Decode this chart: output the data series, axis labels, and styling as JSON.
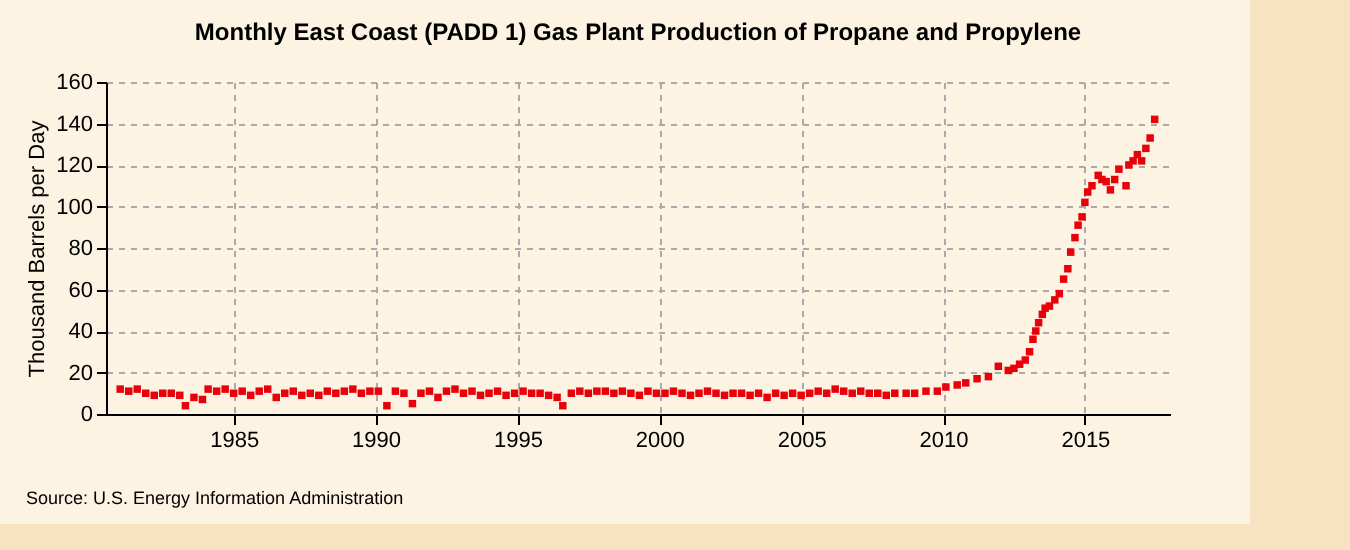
{
  "chart_data": {
    "type": "scatter",
    "title": "Monthly East Coast (PADD 1) Gas Plant Production of Propane and Propylene",
    "ylabel": "Thousand Barrels per Day",
    "annotations": [
      "Source: U.S. Energy Information Administration"
    ],
    "x": [
      1981.0,
      1981.3,
      1981.6,
      1981.9,
      1982.2,
      1982.5,
      1982.8,
      1983.1,
      1983.3,
      1983.6,
      1983.9,
      1984.1,
      1984.4,
      1984.7,
      1985.0,
      1985.3,
      1985.6,
      1985.9,
      1986.2,
      1986.5,
      1986.8,
      1987.1,
      1987.4,
      1987.7,
      1988.0,
      1988.3,
      1988.6,
      1988.9,
      1989.2,
      1989.5,
      1989.8,
      1990.1,
      1990.4,
      1990.7,
      1991.0,
      1991.3,
      1991.6,
      1991.9,
      1992.2,
      1992.5,
      1992.8,
      1993.1,
      1993.4,
      1993.7,
      1994.0,
      1994.3,
      1994.6,
      1994.9,
      1995.2,
      1995.5,
      1995.8,
      1996.1,
      1996.4,
      1996.6,
      1996.9,
      1997.2,
      1997.5,
      1997.8,
      1998.1,
      1998.4,
      1998.7,
      1999.0,
      1999.3,
      1999.6,
      1999.9,
      2000.2,
      2000.5,
      2000.8,
      2001.1,
      2001.4,
      2001.7,
      2002.0,
      2002.3,
      2002.6,
      2002.9,
      2003.2,
      2003.5,
      2003.8,
      2004.1,
      2004.4,
      2004.7,
      2005.0,
      2005.3,
      2005.6,
      2005.9,
      2006.2,
      2006.5,
      2006.8,
      2007.1,
      2007.4,
      2007.7,
      2008.0,
      2008.3,
      2008.7,
      2009.0,
      2009.4,
      2009.8,
      2010.1,
      2010.5,
      2010.8,
      2011.2,
      2011.6,
      2011.95,
      2012.3,
      2012.5,
      2012.7,
      2012.9,
      2013.05,
      2013.17,
      2013.27,
      2013.37,
      2013.5,
      2013.6,
      2013.75,
      2013.94,
      2014.1,
      2014.25,
      2014.4,
      2014.5,
      2014.65,
      2014.76,
      2014.9,
      2015.0,
      2015.1,
      2015.25,
      2015.47,
      2015.6,
      2015.75,
      2015.9,
      2016.05,
      2016.2,
      2016.45,
      2016.55,
      2016.7,
      2016.85,
      2017.0,
      2017.15,
      2017.3,
      2017.46
    ],
    "values": [
      12,
      11,
      12,
      10,
      9,
      10,
      10,
      9,
      4,
      8,
      7,
      12,
      11,
      12,
      10,
      11,
      9,
      11,
      12,
      8,
      10,
      11,
      9,
      10,
      9,
      11,
      10,
      11,
      12,
      10,
      11,
      11,
      4,
      11,
      10,
      5,
      10,
      11,
      8,
      11,
      12,
      10,
      11,
      9,
      10,
      11,
      9,
      10,
      11,
      10,
      10,
      9,
      8,
      4,
      10,
      11,
      10,
      11,
      11,
      10,
      11,
      10,
      9,
      11,
      10,
      10,
      11,
      10,
      9,
      10,
      11,
      10,
      9,
      10,
      10,
      9,
      10,
      8,
      10,
      9,
      10,
      9,
      10,
      11,
      10,
      12,
      11,
      10,
      11,
      10,
      10,
      9,
      10,
      10,
      10,
      11,
      11,
      13,
      14,
      15,
      17,
      18,
      23,
      21,
      22,
      24,
      26,
      30,
      36,
      40,
      44,
      48,
      51,
      52,
      55,
      58,
      65,
      70,
      78,
      85,
      91,
      95,
      102,
      107,
      110,
      115,
      113,
      112,
      108,
      113,
      118,
      110,
      120,
      122,
      125,
      122,
      128,
      133,
      142
    ],
    "color": "#e8000b",
    "marker": "square",
    "xlim": [
      1980.5,
      2018
    ],
    "xticks": [
      1985,
      1990,
      1995,
      2000,
      2005,
      2010,
      2015
    ],
    "ylim": [
      0,
      160
    ],
    "yticks": [
      0,
      20,
      40,
      60,
      80,
      100,
      120,
      140,
      160
    ],
    "grid": true
  }
}
